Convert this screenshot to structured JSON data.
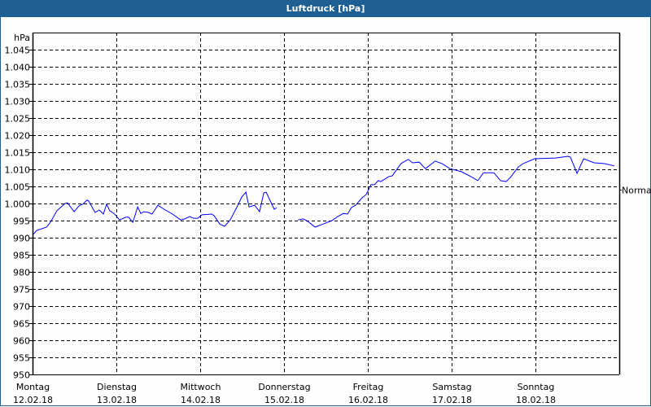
{
  "title": "Luftdruck [hPa]",
  "chart_data": {
    "type": "line",
    "title": "Luftdruck [hPa]",
    "ylabel": "hPa",
    "ylim": [
      950,
      1050
    ],
    "yticks": [
      {
        "v": 1045,
        "label": "1.045"
      },
      {
        "v": 1040,
        "label": "1.040"
      },
      {
        "v": 1035,
        "label": "1.035"
      },
      {
        "v": 1030,
        "label": "1.030"
      },
      {
        "v": 1025,
        "label": "1.025"
      },
      {
        "v": 1020,
        "label": "1.020"
      },
      {
        "v": 1015,
        "label": "1.015"
      },
      {
        "v": 1010,
        "label": "1.010"
      },
      {
        "v": 1005,
        "label": "1.005"
      },
      {
        "v": 1000,
        "label": "1.000"
      },
      {
        "v": 995,
        "label": "995"
      },
      {
        "v": 990,
        "label": "990"
      },
      {
        "v": 985,
        "label": "985"
      },
      {
        "v": 980,
        "label": "980"
      },
      {
        "v": 975,
        "label": "975"
      },
      {
        "v": 970,
        "label": "970"
      },
      {
        "v": 965,
        "label": "965"
      },
      {
        "v": 960,
        "label": "960"
      },
      {
        "v": 955,
        "label": "955"
      },
      {
        "v": 950,
        "label": "950"
      }
    ],
    "xlim": [
      "2018-02-12T00:00",
      "2018-02-19T00:00"
    ],
    "xticks": [
      {
        "day": "Montag",
        "date": "12.02.18"
      },
      {
        "day": "Dienstag",
        "date": "13.02.18"
      },
      {
        "day": "Mittwoch",
        "date": "14.02.18"
      },
      {
        "day": "Donnerstag",
        "date": "15.02.18"
      },
      {
        "day": "Freitag",
        "date": "16.02.18"
      },
      {
        "day": "Samstag",
        "date": "17.02.18"
      },
      {
        "day": "Sonntag",
        "date": "18.02.18"
      }
    ],
    "grid": true,
    "line_color": "#0000ff",
    "reference": {
      "label": "Normal",
      "value": 1004
    },
    "segments": [
      [
        [
          "2018-02-12T00:12",
          991.0
        ],
        [
          "2018-02-12T01:12",
          992.1
        ],
        [
          "2018-02-12T04:00",
          993.1
        ],
        [
          "2018-02-12T05:06",
          994.5
        ],
        [
          "2018-02-12T07:00",
          997.9
        ],
        [
          "2018-02-12T09:18",
          1000.0
        ],
        [
          "2018-02-12T10:00",
          1000.2
        ],
        [
          "2018-02-12T10:30",
          999.5
        ],
        [
          "2018-02-12T11:54",
          997.6
        ],
        [
          "2018-02-12T13:18",
          999.3
        ],
        [
          "2018-02-12T14:24",
          999.8
        ],
        [
          "2018-02-12T15:36",
          1001.0
        ],
        [
          "2018-02-12T16:06",
          1000.7
        ],
        [
          "2018-02-12T17:54",
          997.4
        ],
        [
          "2018-02-12T19:06",
          998.1
        ],
        [
          "2018-02-12T20:18",
          996.9
        ],
        [
          "2018-02-12T21:12",
          999.8
        ],
        [
          "2018-02-12T22:06",
          997.9
        ],
        [
          "2018-02-12T23:18",
          997.1
        ],
        [
          "2018-02-13T00:54",
          995.2
        ],
        [
          "2018-02-13T02:48",
          996.0
        ],
        [
          "2018-02-13T03:30",
          996.0
        ],
        [
          "2018-02-13T04:42",
          994.5
        ],
        [
          "2018-02-13T06:06",
          999.0
        ],
        [
          "2018-02-13T07:00",
          997.1
        ],
        [
          "2018-02-13T07:54",
          997.6
        ],
        [
          "2018-02-13T09:06",
          997.4
        ],
        [
          "2018-02-13T10:12",
          996.9
        ],
        [
          "2018-02-13T11:54",
          999.5
        ],
        [
          "2018-02-13T14:00",
          998.1
        ],
        [
          "2018-02-13T16:06",
          996.9
        ],
        [
          "2018-02-13T18:24",
          995.2
        ],
        [
          "2018-02-13T19:36",
          995.5
        ],
        [
          "2018-02-13T21:00",
          996.2
        ],
        [
          "2018-02-13T22:06",
          995.7
        ],
        [
          "2018-02-13T23:18",
          995.7
        ],
        [
          "2018-02-14T00:30",
          996.7
        ],
        [
          "2018-02-14T03:18",
          996.9
        ],
        [
          "2018-02-14T04:00",
          996.4
        ],
        [
          "2018-02-14T05:36",
          994.0
        ],
        [
          "2018-02-14T07:00",
          993.3
        ],
        [
          "2018-02-14T08:36",
          995.2
        ],
        [
          "2018-02-14T10:42",
          999.3
        ],
        [
          "2018-02-14T11:54",
          1001.9
        ],
        [
          "2018-02-14T13:06",
          1003.3
        ],
        [
          "2018-02-14T14:00",
          999.0
        ],
        [
          "2018-02-14T15:36",
          999.5
        ],
        [
          "2018-02-14T17:00",
          997.6
        ],
        [
          "2018-02-14T18:12",
          1003.1
        ],
        [
          "2018-02-14T18:54",
          1003.3
        ],
        [
          "2018-02-14T21:12",
          998.3
        ],
        [
          "2018-02-14T21:54",
          998.8
        ]
      ],
      [
        [
          "2018-02-15T04:00",
          995.2
        ],
        [
          "2018-02-15T05:24",
          995.5
        ],
        [
          "2018-02-15T06:30",
          995.0
        ],
        [
          "2018-02-15T08:54",
          993.1
        ],
        [
          "2018-02-15T11:12",
          994.0
        ],
        [
          "2018-02-15T13:42",
          995.0
        ],
        [
          "2018-02-15T15:24",
          996.2
        ],
        [
          "2018-02-15T17:00",
          997.1
        ],
        [
          "2018-02-15T18:12",
          996.9
        ],
        [
          "2018-02-15T19:18",
          998.8
        ],
        [
          "2018-02-15T20:30",
          999.5
        ],
        [
          "2018-02-15T22:24",
          1001.7
        ],
        [
          "2018-02-15T23:30",
          1002.6
        ],
        [
          "2018-02-16T00:54",
          1005.5
        ],
        [
          "2018-02-16T01:54",
          1005.5
        ],
        [
          "2018-02-16T03:00",
          1006.7
        ],
        [
          "2018-02-16T03:42",
          1006.4
        ],
        [
          "2018-02-16T06:06",
          1007.9
        ],
        [
          "2018-02-16T07:00",
          1008.1
        ],
        [
          "2018-02-16T09:30",
          1011.7
        ],
        [
          "2018-02-16T11:36",
          1012.9
        ],
        [
          "2018-02-16T12:48",
          1011.9
        ],
        [
          "2018-02-16T14:42",
          1012.1
        ],
        [
          "2018-02-16T16:30",
          1010.2
        ],
        [
          "2018-02-16T19:18",
          1012.4
        ],
        [
          "2018-02-16T21:12",
          1011.7
        ],
        [
          "2018-02-16T23:30",
          1010.2
        ],
        [
          "2018-02-17T02:48",
          1009.3
        ],
        [
          "2018-02-17T05:06",
          1008.1
        ],
        [
          "2018-02-17T07:30",
          1006.7
        ],
        [
          "2018-02-17T09:06",
          1009.0
        ],
        [
          "2018-02-17T12:06",
          1009.0
        ],
        [
          "2018-02-17T14:00",
          1006.7
        ],
        [
          "2018-02-17T15:36",
          1006.4
        ],
        [
          "2018-02-17T16:48",
          1007.6
        ],
        [
          "2018-02-17T19:06",
          1010.7
        ],
        [
          "2018-02-17T20:30",
          1011.7
        ],
        [
          "2018-02-17T23:48",
          1013.1
        ],
        [
          "2018-02-18T05:48",
          1013.3
        ],
        [
          "2018-02-18T09:18",
          1013.8
        ],
        [
          "2018-02-18T10:00",
          1013.6
        ],
        [
          "2018-02-18T11:54",
          1008.8
        ],
        [
          "2018-02-18T13:48",
          1013.1
        ],
        [
          "2018-02-18T16:48",
          1011.9
        ],
        [
          "2018-02-18T19:36",
          1011.7
        ],
        [
          "2018-02-18T20:54",
          1011.4
        ],
        [
          "2018-02-18T22:36",
          1011.0
        ]
      ]
    ]
  }
}
